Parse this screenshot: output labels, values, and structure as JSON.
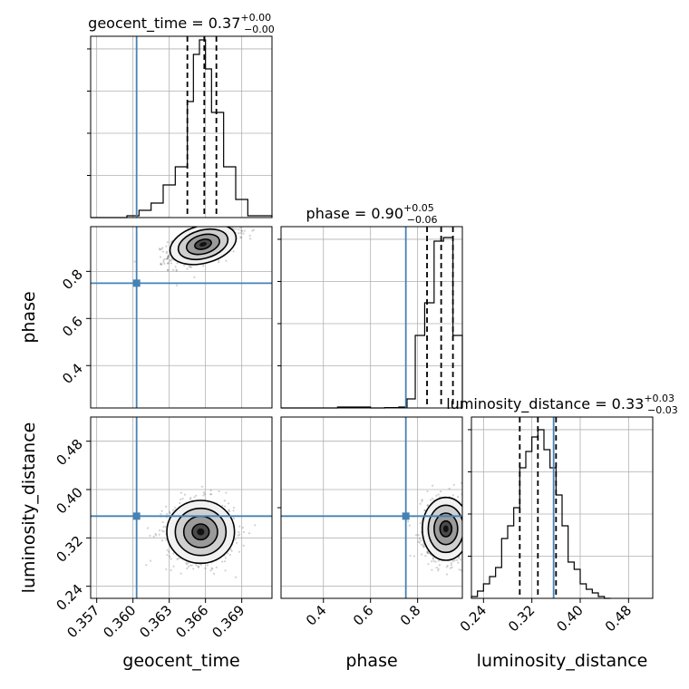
{
  "chart_data": {
    "type": "corner",
    "parameters": [
      {
        "name": "geocent_time",
        "title_prefix": "geocent_time = 0.37",
        "title_sup": "+0.00",
        "title_sub": "−0.00",
        "axis_label": "geocent_time",
        "range": [
          0.3565,
          0.3715
        ],
        "ticks": [
          0.357,
          0.36,
          0.363,
          0.366,
          0.369
        ],
        "tick_labels": [
          "0.357",
          "0.360",
          "0.363",
          "0.366",
          "0.369"
        ],
        "truth": 0.3603,
        "quantiles": [
          0.3645,
          0.3659,
          0.3669
        ],
        "hist_edges": [
          0.3565,
          0.3575,
          0.3585,
          0.3595,
          0.3605,
          0.3615,
          0.3625,
          0.3635,
          0.3645,
          0.365,
          0.3655,
          0.366,
          0.3665,
          0.3675,
          0.3685,
          0.3695,
          0.3705,
          0.3715
        ],
        "hist_counts": [
          0,
          0,
          0,
          0.01,
          0.04,
          0.08,
          0.18,
          0.28,
          0.64,
          0.9,
          0.98,
          0.82,
          0.58,
          0.28,
          0.1,
          0.01,
          0.01
        ]
      },
      {
        "name": "phase",
        "title_prefix": "phase = 0.90",
        "title_sup": "+0.05",
        "title_sub": "−0.06",
        "axis_label": "phase",
        "range": [
          0.22,
          0.99
        ],
        "ticks": [
          0.4,
          0.6,
          0.8
        ],
        "tick_labels": [
          "0.4",
          "0.6",
          "0.8"
        ],
        "truth": 0.75,
        "quantiles": [
          0.84,
          0.9,
          0.95
        ],
        "hist_edges": [
          0.22,
          0.3,
          0.38,
          0.46,
          0.54,
          0.6,
          0.66,
          0.72,
          0.755,
          0.79,
          0.83,
          0.87,
          0.91,
          0.95,
          0.99
        ],
        "hist_counts": [
          0,
          0,
          0,
          0.005,
          0.005,
          0,
          0.002,
          0.005,
          0.05,
          0.4,
          0.58,
          0.92,
          0.94,
          0.4
        ]
      },
      {
        "name": "luminosity_distance",
        "title_prefix": "luminosity_distance = 0.33",
        "title_sup": "+0.03",
        "title_sub": "−0.03",
        "axis_label": "luminosity_distance",
        "range": [
          0.22,
          0.52
        ],
        "ticks": [
          0.24,
          0.32,
          0.4,
          0.48
        ],
        "tick_labels": [
          "0.24",
          "0.32",
          "0.40",
          "0.48"
        ],
        "truth": 0.356,
        "quantiles": [
          0.3,
          0.33,
          0.36
        ],
        "hist_edges": [
          0.22,
          0.23,
          0.24,
          0.25,
          0.26,
          0.27,
          0.28,
          0.29,
          0.3,
          0.31,
          0.32,
          0.33,
          0.34,
          0.35,
          0.36,
          0.37,
          0.38,
          0.39,
          0.4,
          0.41,
          0.42,
          0.43,
          0.44,
          0.45
        ],
        "hist_counts": [
          0.01,
          0.04,
          0.08,
          0.12,
          0.17,
          0.33,
          0.4,
          0.5,
          0.72,
          0.81,
          0.89,
          0.93,
          0.82,
          0.72,
          0.57,
          0.4,
          0.2,
          0.16,
          0.08,
          0.05,
          0.03,
          0.01,
          0
        ]
      }
    ],
    "pairs": [
      {
        "x": "geocent_time",
        "y": "phase",
        "yrange": [
          0.22,
          0.99
        ],
        "yticks": [
          0.4,
          0.6,
          0.8
        ],
        "ytick_labels": [
          "0.4",
          "0.6",
          "0.8"
        ],
        "center": [
          0.3658,
          0.915
        ],
        "spread": [
          0.0014,
          0.04
        ],
        "corr": 0.55,
        "truth": [
          0.3603,
          0.75
        ]
      },
      {
        "x": "geocent_time",
        "y": "luminosity_distance",
        "center": [
          0.3656,
          0.33
        ],
        "spread": [
          0.0014,
          0.026
        ],
        "corr": 0.0,
        "truth": [
          0.3603,
          0.356
        ]
      },
      {
        "x": "phase",
        "y": "luminosity_distance",
        "center": [
          0.92,
          0.335
        ],
        "spread": [
          0.05,
          0.026
        ],
        "corr": 0.0,
        "truth": [
          0.75,
          0.356
        ]
      }
    ],
    "colors": {
      "truth": "#4682b4",
      "hist": "#000000",
      "grid": "#b0b0b0",
      "scatter": "#000000"
    },
    "grid": true
  }
}
